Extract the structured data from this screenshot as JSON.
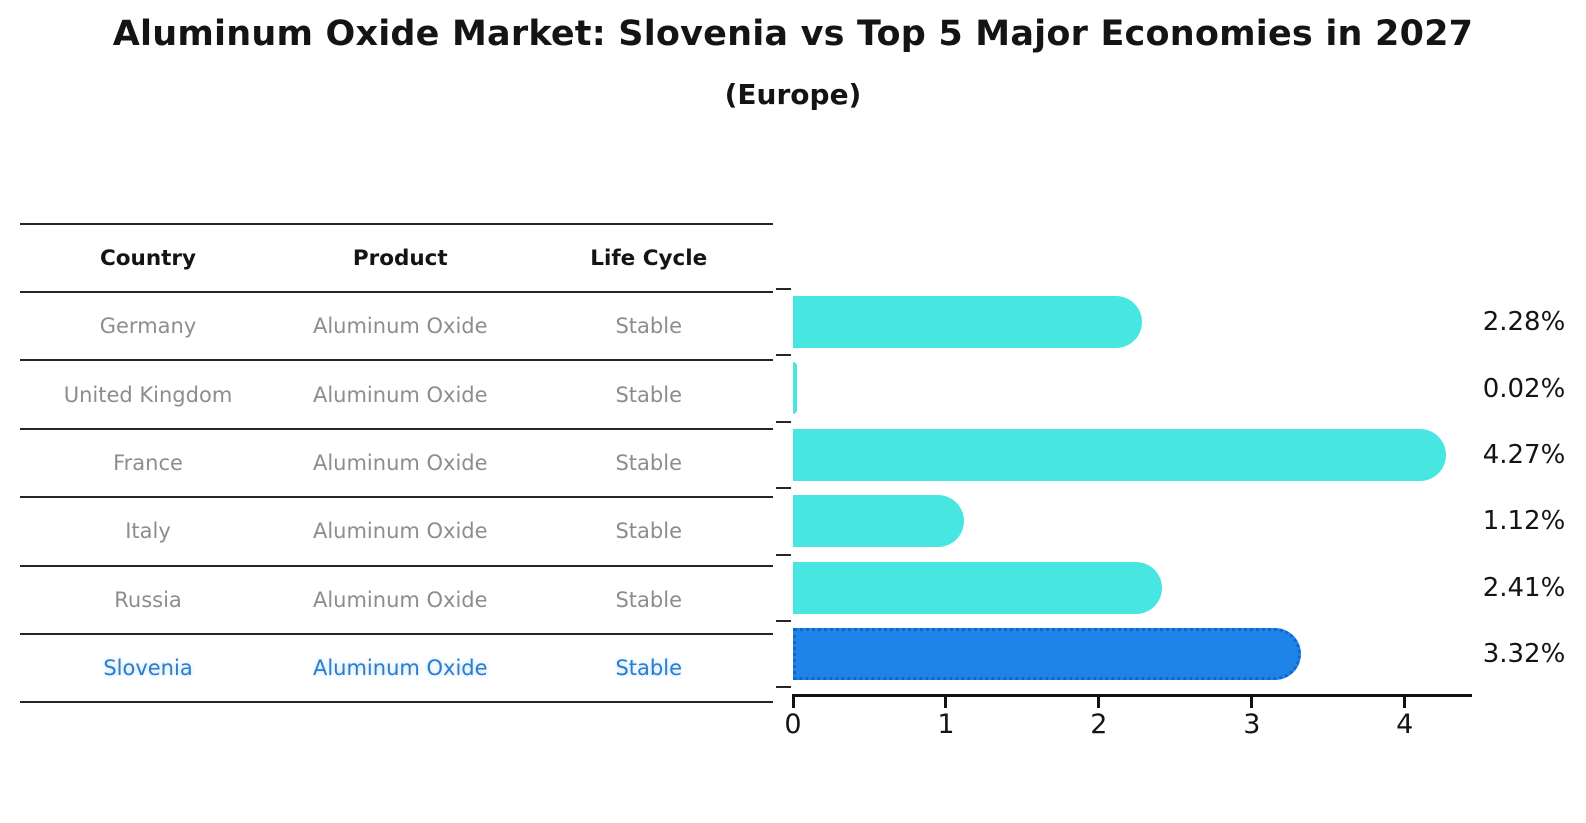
{
  "title": "Aluminum Oxide Market: Slovenia vs Top 5 Major Economies in 2027",
  "subtitle": "(Europe)",
  "table": {
    "headers": [
      "Country",
      "Product",
      "Life Cycle"
    ],
    "rows": [
      {
        "country": "Germany",
        "product": "Aluminum Oxide",
        "life_cycle": "Stable",
        "highlighted": false
      },
      {
        "country": "United Kingdom",
        "product": "Aluminum Oxide",
        "life_cycle": "Stable",
        "highlighted": false
      },
      {
        "country": "France",
        "product": "Aluminum Oxide",
        "life_cycle": "Stable",
        "highlighted": false
      },
      {
        "country": "Italy",
        "product": "Aluminum Oxide",
        "life_cycle": "Stable",
        "highlighted": false
      },
      {
        "country": "Russia",
        "product": "Aluminum Oxide",
        "life_cycle": "Stable",
        "highlighted": false
      },
      {
        "country": "Slovenia",
        "product": "Aluminum Oxide",
        "life_cycle": "Stable",
        "highlighted": true
      }
    ]
  },
  "chart_data": {
    "type": "bar",
    "orientation": "horizontal",
    "title": "Aluminum Oxide Market: Slovenia vs Top 5 Major Economies in 2027 (Europe)",
    "categories": [
      "Germany",
      "United Kingdom",
      "France",
      "Italy",
      "Russia",
      "Slovenia"
    ],
    "values": [
      2.28,
      0.02,
      4.27,
      1.12,
      2.41,
      3.32
    ],
    "value_labels": [
      "2.28%",
      "0.02%",
      "4.27%",
      "1.12%",
      "2.41%",
      "3.32%"
    ],
    "unit": "%",
    "x_ticks": [
      "0",
      "1",
      "2",
      "3",
      "4"
    ],
    "xlim": [
      0,
      4.44
    ],
    "grid": false,
    "legend": false,
    "bar_color": "#47e6e0",
    "highlight_bar_color": "#1e84e8",
    "highlight_border_color": "#1266cc",
    "highlight_index": 5
  },
  "colors": {
    "header_text": "#141414",
    "row_text": "#8d8d8d",
    "highlight_text": "#2d7ec8",
    "table_line": "#262626",
    "axis": "#111111",
    "background": "#ffffff"
  }
}
